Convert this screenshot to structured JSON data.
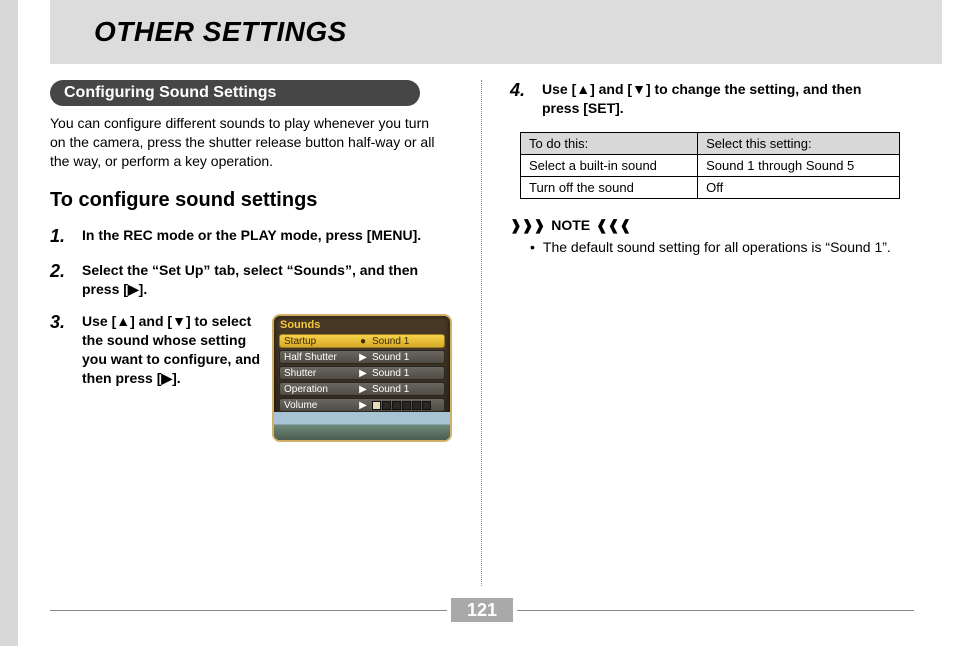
{
  "page_title": "OTHER SETTINGS",
  "section_title": "Configuring Sound Settings",
  "intro_para": "You can configure different sounds to play whenever you turn on the camera, press the shutter release button half-way or all the way, or perform a key operation.",
  "subhead": "To configure sound settings",
  "steps": {
    "s1_num": "1.",
    "s1_text": "In the REC mode or the PLAY mode, press [MENU].",
    "s2_num": "2.",
    "s2_text": "Select the “Set Up” tab, select “Sounds”, and then press [▶].",
    "s3_num": "3.",
    "s3_text": "Use [▲] and [▼] to select the sound whose setting you want to configure, and then press [▶].",
    "s4_num": "4.",
    "s4_text": "Use [▲] and [▼] to change the setting, and then press [SET]."
  },
  "lcd": {
    "title": "Sounds",
    "rows": [
      {
        "label": "Startup",
        "mid": "●",
        "val": "Sound 1",
        "selected": true
      },
      {
        "label": "Half Shutter",
        "mid": "▶",
        "val": "Sound 1",
        "selected": false
      },
      {
        "label": "Shutter",
        "mid": "▶",
        "val": "Sound 1",
        "selected": false
      },
      {
        "label": "Operation",
        "mid": "▶",
        "val": "Sound 1",
        "selected": false
      }
    ],
    "volume_label": "Volume",
    "volume_mid": "▶"
  },
  "table": {
    "head_action": "To do this:",
    "head_setting": "Select this setting:",
    "rows": [
      {
        "action": "Select a built-in sound",
        "setting": "Sound 1 through Sound 5"
      },
      {
        "action": "Turn off the sound",
        "setting": "Off"
      }
    ]
  },
  "note_label": "NOTE",
  "note_text": "The default sound setting for all operations is “Sound 1”.",
  "page_number": "121"
}
